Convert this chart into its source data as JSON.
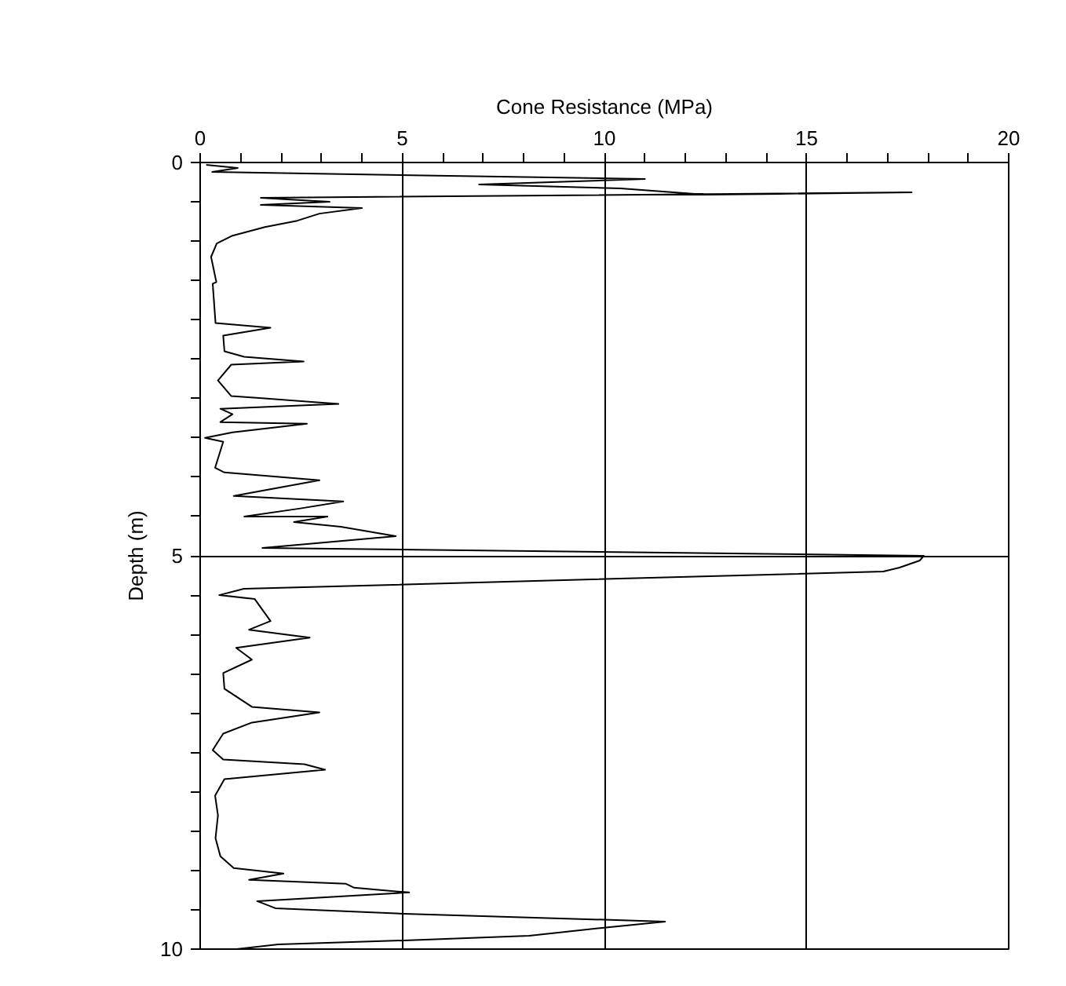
{
  "chart_data": {
    "type": "line",
    "xlabel": "Cone Resistance (MPa)",
    "ylabel": "Depth (m)",
    "x": [
      0.15,
      0.93,
      0.3,
      11.0,
      6.9,
      10.4,
      12.5,
      17.6,
      1.5,
      3.2,
      1.5,
      4.0,
      2.95,
      2.4,
      1.6,
      0.8,
      0.41,
      0.27,
      0.4,
      0.31,
      0.38,
      1.74,
      0.57,
      0.6,
      1.09,
      2.56,
      0.77,
      0.44,
      0.77,
      1.6,
      3.42,
      0.5,
      0.8,
      0.5,
      2.64,
      0.8,
      0.12,
      0.57,
      0.37,
      0.6,
      2.95,
      0.83,
      3.54,
      2.45,
      1.09,
      3.15,
      2.32,
      3.48,
      4.84,
      1.54,
      17.9,
      17.8,
      17.3,
      16.9,
      1.08,
      0.47,
      1.35,
      1.74,
      1.21,
      2.71,
      0.89,
      1.28,
      0.57,
      0.6,
      1.28,
      2.95,
      1.28,
      0.57,
      0.31,
      0.57,
      2.58,
      3.09,
      0.6,
      0.37,
      0.44,
      0.38,
      0.5,
      0.83,
      2.06,
      1.21,
      3.61,
      3.81,
      5.17,
      1.41,
      1.86,
      5.04,
      11.5,
      9.94,
      8.14,
      5.04,
      1.93,
      0.9
    ],
    "series": [
      {
        "color": "#000000",
        "values": [
          0.03,
          0.07,
          0.12,
          0.21,
          0.28,
          0.33,
          0.41,
          0.38,
          0.45,
          0.5,
          0.54,
          0.58,
          0.65,
          0.74,
          0.82,
          0.93,
          1.03,
          1.2,
          1.52,
          1.54,
          2.04,
          2.1,
          2.2,
          2.4,
          2.47,
          2.53,
          2.57,
          2.77,
          2.97,
          3.0,
          3.07,
          3.13,
          3.2,
          3.3,
          3.32,
          3.43,
          3.5,
          3.55,
          3.88,
          3.94,
          4.04,
          4.24,
          4.31,
          4.4,
          4.5,
          4.5,
          4.57,
          4.63,
          4.75,
          4.9,
          5.0,
          5.06,
          5.15,
          5.2,
          5.42,
          5.5,
          5.55,
          5.83,
          5.94,
          6.04,
          6.17,
          6.32,
          6.49,
          6.69,
          6.92,
          6.99,
          7.12,
          7.26,
          7.47,
          7.59,
          7.65,
          7.72,
          7.84,
          8.05,
          8.3,
          8.59,
          8.82,
          8.97,
          9.04,
          9.12,
          9.17,
          9.22,
          9.28,
          9.39,
          9.48,
          9.55,
          9.65,
          9.73,
          9.83,
          9.89,
          9.94,
          10.0
        ]
      }
    ],
    "xlim": [
      0,
      20
    ],
    "ylim": [
      10,
      0
    ],
    "xticks": [
      0,
      {
        "value": 1,
        "label": null
      },
      {
        "value": 2,
        "label": null
      },
      {
        "value": 3,
        "label": null
      },
      {
        "value": 4,
        "label": null
      },
      5,
      {
        "value": 6,
        "label": null
      },
      {
        "value": 7,
        "label": null
      },
      {
        "value": 8,
        "label": null
      },
      {
        "value": 9,
        "label": null
      },
      10,
      {
        "value": 11,
        "label": null
      },
      {
        "value": 12,
        "label": null
      },
      {
        "value": 13,
        "label": null
      },
      {
        "value": 14,
        "label": null
      },
      15,
      {
        "value": 16,
        "label": null
      },
      {
        "value": 17,
        "label": null
      },
      {
        "value": 18,
        "label": null
      },
      {
        "value": 19,
        "label": null
      },
      20
    ],
    "yticks": [
      0,
      {
        "value": 0.5,
        "label": null
      },
      {
        "value": 1,
        "label": null
      },
      {
        "value": 1.5,
        "label": null
      },
      {
        "value": 2,
        "label": null
      },
      {
        "value": 2.5,
        "label": null
      },
      {
        "value": 3,
        "label": null
      },
      {
        "value": 3.5,
        "label": null
      },
      {
        "value": 4,
        "label": null
      },
      {
        "value": 4.5,
        "label": null
      },
      5,
      {
        "value": 5.5,
        "label": null
      },
      {
        "value": 6,
        "label": null
      },
      {
        "value": 6.5,
        "label": null
      },
      {
        "value": 7,
        "label": null
      },
      {
        "value": 7.5,
        "label": null
      },
      {
        "value": 8,
        "label": null
      },
      {
        "value": 8.5,
        "label": null
      },
      {
        "value": 9,
        "label": null
      },
      {
        "value": 9.5,
        "label": null
      },
      10
    ],
    "grid": true,
    "marker": "none",
    "line_style": "solid"
  }
}
